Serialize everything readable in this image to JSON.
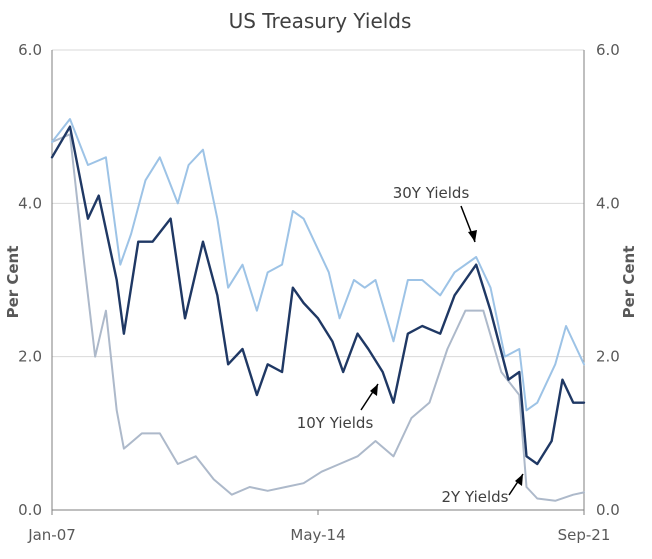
{
  "chart_data": {
    "type": "line",
    "title": "US Treasury Yields",
    "xlabel": "",
    "ylabel_left": "Per Cent",
    "ylabel_right": "Per Cent",
    "x_tick_labels": [
      "Jan-07",
      "May-14",
      "Sep-21"
    ],
    "y_tick_labels": [
      "0.0",
      "2.0",
      "4.0",
      "6.0"
    ],
    "ylim": [
      0,
      6
    ],
    "grid": true,
    "legend": "none",
    "colors": {
      "30Y": "#9dc3e6",
      "10Y": "#1f3864",
      "2Y": "#adb9ca",
      "grid": "#d9d9d9",
      "axis": "#7f7f7f"
    },
    "series": [
      {
        "name": "30Y Yields",
        "x": [
          2007.0,
          2007.5,
          2008.0,
          2008.5,
          2008.9,
          2009.2,
          2009.6,
          2010.0,
          2010.5,
          2010.8,
          2011.2,
          2011.6,
          2011.9,
          2012.3,
          2012.7,
          2013.0,
          2013.4,
          2013.7,
          2014.0,
          2014.3,
          2014.7,
          2015.0,
          2015.4,
          2015.7,
          2016.0,
          2016.5,
          2016.9,
          2017.3,
          2017.8,
          2018.2,
          2018.8,
          2019.2,
          2019.6,
          2020.0,
          2020.2,
          2020.5,
          2021.0,
          2021.3,
          2021.8
        ],
        "values": [
          4.8,
          5.1,
          4.5,
          4.6,
          3.2,
          3.6,
          4.3,
          4.6,
          4.0,
          4.5,
          4.7,
          3.8,
          2.9,
          3.2,
          2.6,
          3.1,
          3.2,
          3.9,
          3.8,
          3.5,
          3.1,
          2.5,
          3.0,
          2.9,
          3.0,
          2.2,
          3.0,
          3.0,
          2.8,
          3.1,
          3.3,
          2.9,
          2.0,
          2.1,
          1.3,
          1.4,
          1.9,
          2.4,
          1.9
        ]
      },
      {
        "name": "10Y Yields",
        "x": [
          2007.0,
          2007.5,
          2008.0,
          2008.3,
          2008.8,
          2009.0,
          2009.4,
          2009.8,
          2010.3,
          2010.7,
          2011.2,
          2011.6,
          2011.9,
          2012.3,
          2012.7,
          2013.0,
          2013.4,
          2013.7,
          2014.0,
          2014.4,
          2014.8,
          2015.1,
          2015.5,
          2015.8,
          2016.2,
          2016.5,
          2016.9,
          2017.3,
          2017.8,
          2018.2,
          2018.8,
          2019.2,
          2019.7,
          2020.0,
          2020.2,
          2020.5,
          2020.9,
          2021.2,
          2021.5,
          2021.8
        ],
        "values": [
          4.6,
          5.0,
          3.8,
          4.1,
          3.0,
          2.3,
          3.5,
          3.5,
          3.8,
          2.5,
          3.5,
          2.8,
          1.9,
          2.1,
          1.5,
          1.9,
          1.8,
          2.9,
          2.7,
          2.5,
          2.2,
          1.8,
          2.3,
          2.1,
          1.8,
          1.4,
          2.3,
          2.4,
          2.3,
          2.8,
          3.2,
          2.6,
          1.7,
          1.8,
          0.7,
          0.6,
          0.9,
          1.7,
          1.4,
          1.4
        ]
      },
      {
        "name": "2Y Yields",
        "x": [
          2007.0,
          2007.5,
          2007.9,
          2008.2,
          2008.5,
          2008.8,
          2009.0,
          2009.5,
          2010.0,
          2010.5,
          2011.0,
          2011.5,
          2012.0,
          2012.5,
          2013.0,
          2013.5,
          2014.0,
          2014.5,
          2015.0,
          2015.5,
          2016.0,
          2016.5,
          2017.0,
          2017.5,
          2018.0,
          2018.5,
          2019.0,
          2019.5,
          2020.0,
          2020.2,
          2020.5,
          2021.0,
          2021.5,
          2021.8
        ],
        "values": [
          4.8,
          4.9,
          3.2,
          2.0,
          2.6,
          1.3,
          0.8,
          1.0,
          1.0,
          0.6,
          0.7,
          0.4,
          0.2,
          0.3,
          0.25,
          0.3,
          0.35,
          0.5,
          0.6,
          0.7,
          0.9,
          0.7,
          1.2,
          1.4,
          2.1,
          2.6,
          2.6,
          1.8,
          1.5,
          0.3,
          0.15,
          0.12,
          0.2,
          0.23
        ]
      }
    ],
    "annotations": [
      {
        "text": "30Y Yields",
        "target_series": "30Y Yields"
      },
      {
        "text": "10Y Yields",
        "target_series": "10Y Yields"
      },
      {
        "text": "2Y Yields",
        "target_series": "2Y Yields"
      }
    ]
  }
}
